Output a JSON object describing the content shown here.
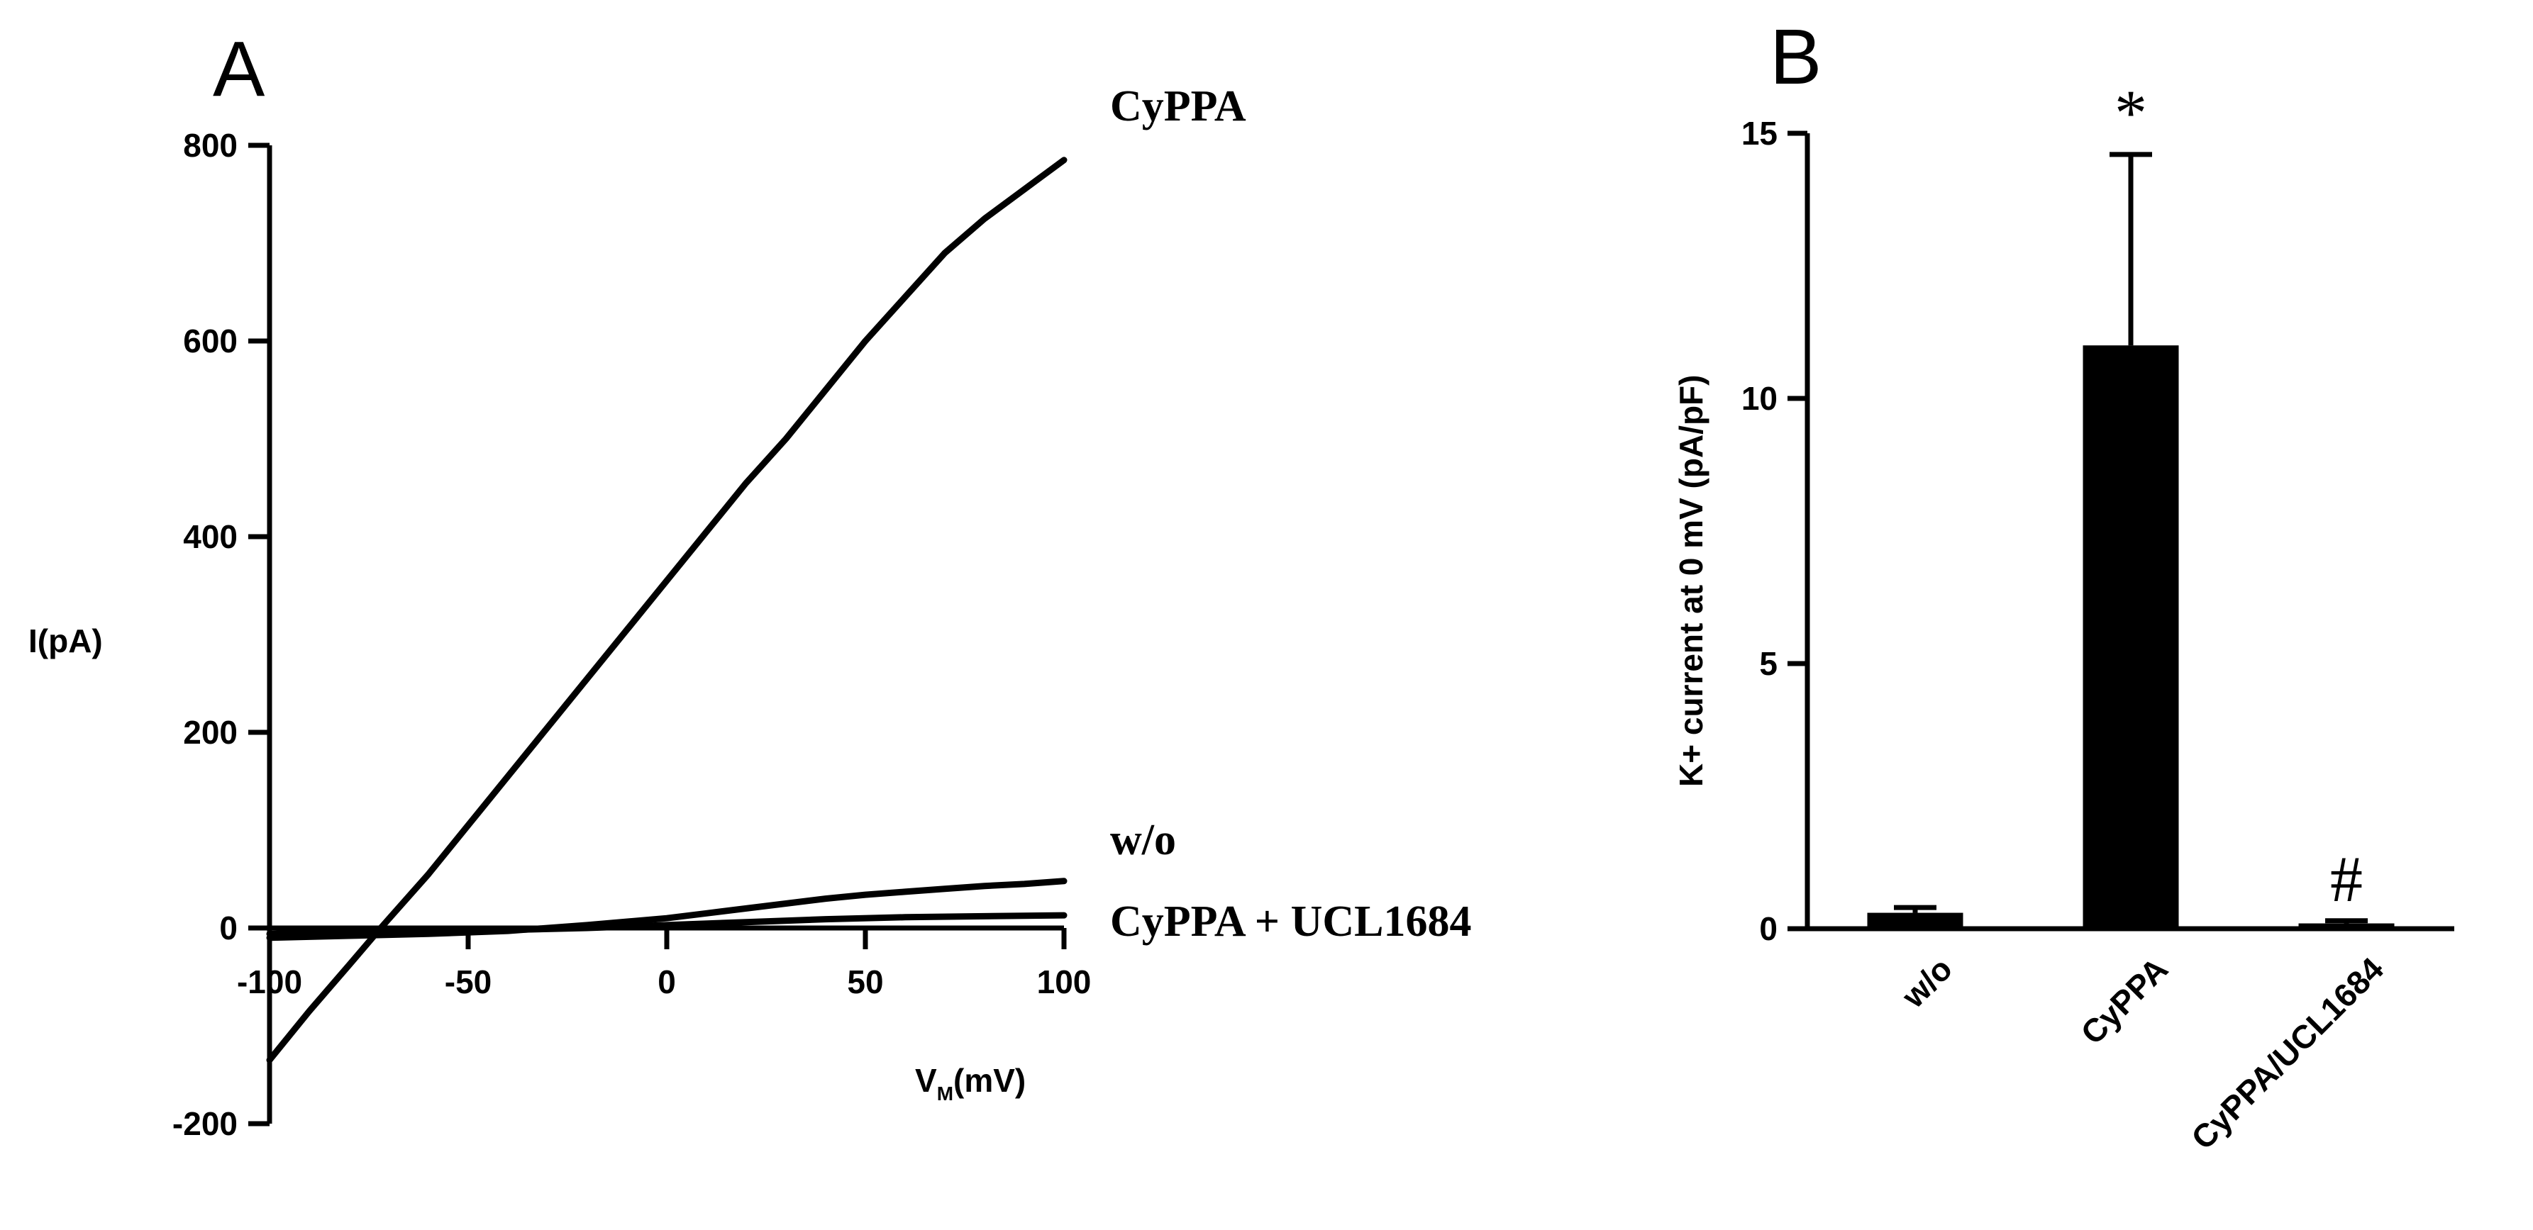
{
  "chart_data": [
    {
      "panel": "A",
      "type": "line",
      "xlabel_main": "V",
      "xlabel_sub": "M",
      "xlabel_unit": "(mV)",
      "ylabel": "I(pA)",
      "xlim": [
        -100,
        100
      ],
      "ylim": [
        -200,
        800
      ],
      "xticks": [
        -100,
        -50,
        0,
        50,
        100
      ],
      "yticks": [
        -200,
        0,
        200,
        400,
        600,
        800
      ],
      "series": [
        {
          "name": "CyPPA",
          "x": [
            -100,
            -90,
            -80,
            -72,
            -60,
            -50,
            -40,
            -30,
            -20,
            -10,
            0,
            10,
            20,
            30,
            40,
            50,
            60,
            70,
            80,
            90,
            100
          ],
          "y": [
            -135,
            -85,
            -38,
            0,
            55,
            105,
            155,
            205,
            255,
            305,
            355,
            405,
            455,
            500,
            550,
            600,
            645,
            690,
            725,
            755,
            785
          ]
        },
        {
          "name": "w/o",
          "x": [
            -100,
            -80,
            -60,
            -40,
            -20,
            0,
            10,
            20,
            30,
            40,
            50,
            60,
            70,
            80,
            90,
            100
          ],
          "y": [
            -10,
            -8,
            -6,
            -3,
            3,
            10,
            15,
            20,
            25,
            30,
            34,
            37,
            40,
            43,
            45,
            48
          ]
        },
        {
          "name": "CyPPA + UCL1684",
          "x": [
            -100,
            -80,
            -60,
            -40,
            -20,
            0,
            20,
            40,
            60,
            80,
            100
          ],
          "y": [
            -6,
            -4,
            -3,
            -2,
            0,
            3,
            6,
            9,
            11,
            12,
            13
          ]
        }
      ]
    },
    {
      "panel": "B",
      "type": "bar",
      "ylabel": "K+ current at 0 mV (pA/pF)",
      "ylim": [
        0,
        15
      ],
      "yticks": [
        0,
        5,
        10,
        15
      ],
      "categories": [
        "w/o",
        "CyPPA",
        "CyPPA/UCL1684"
      ],
      "values": [
        0.3,
        11.0,
        0.1
      ],
      "errors": [
        0.1,
        3.6,
        0.05
      ],
      "annotations": [
        "",
        "*",
        "#"
      ]
    }
  ]
}
